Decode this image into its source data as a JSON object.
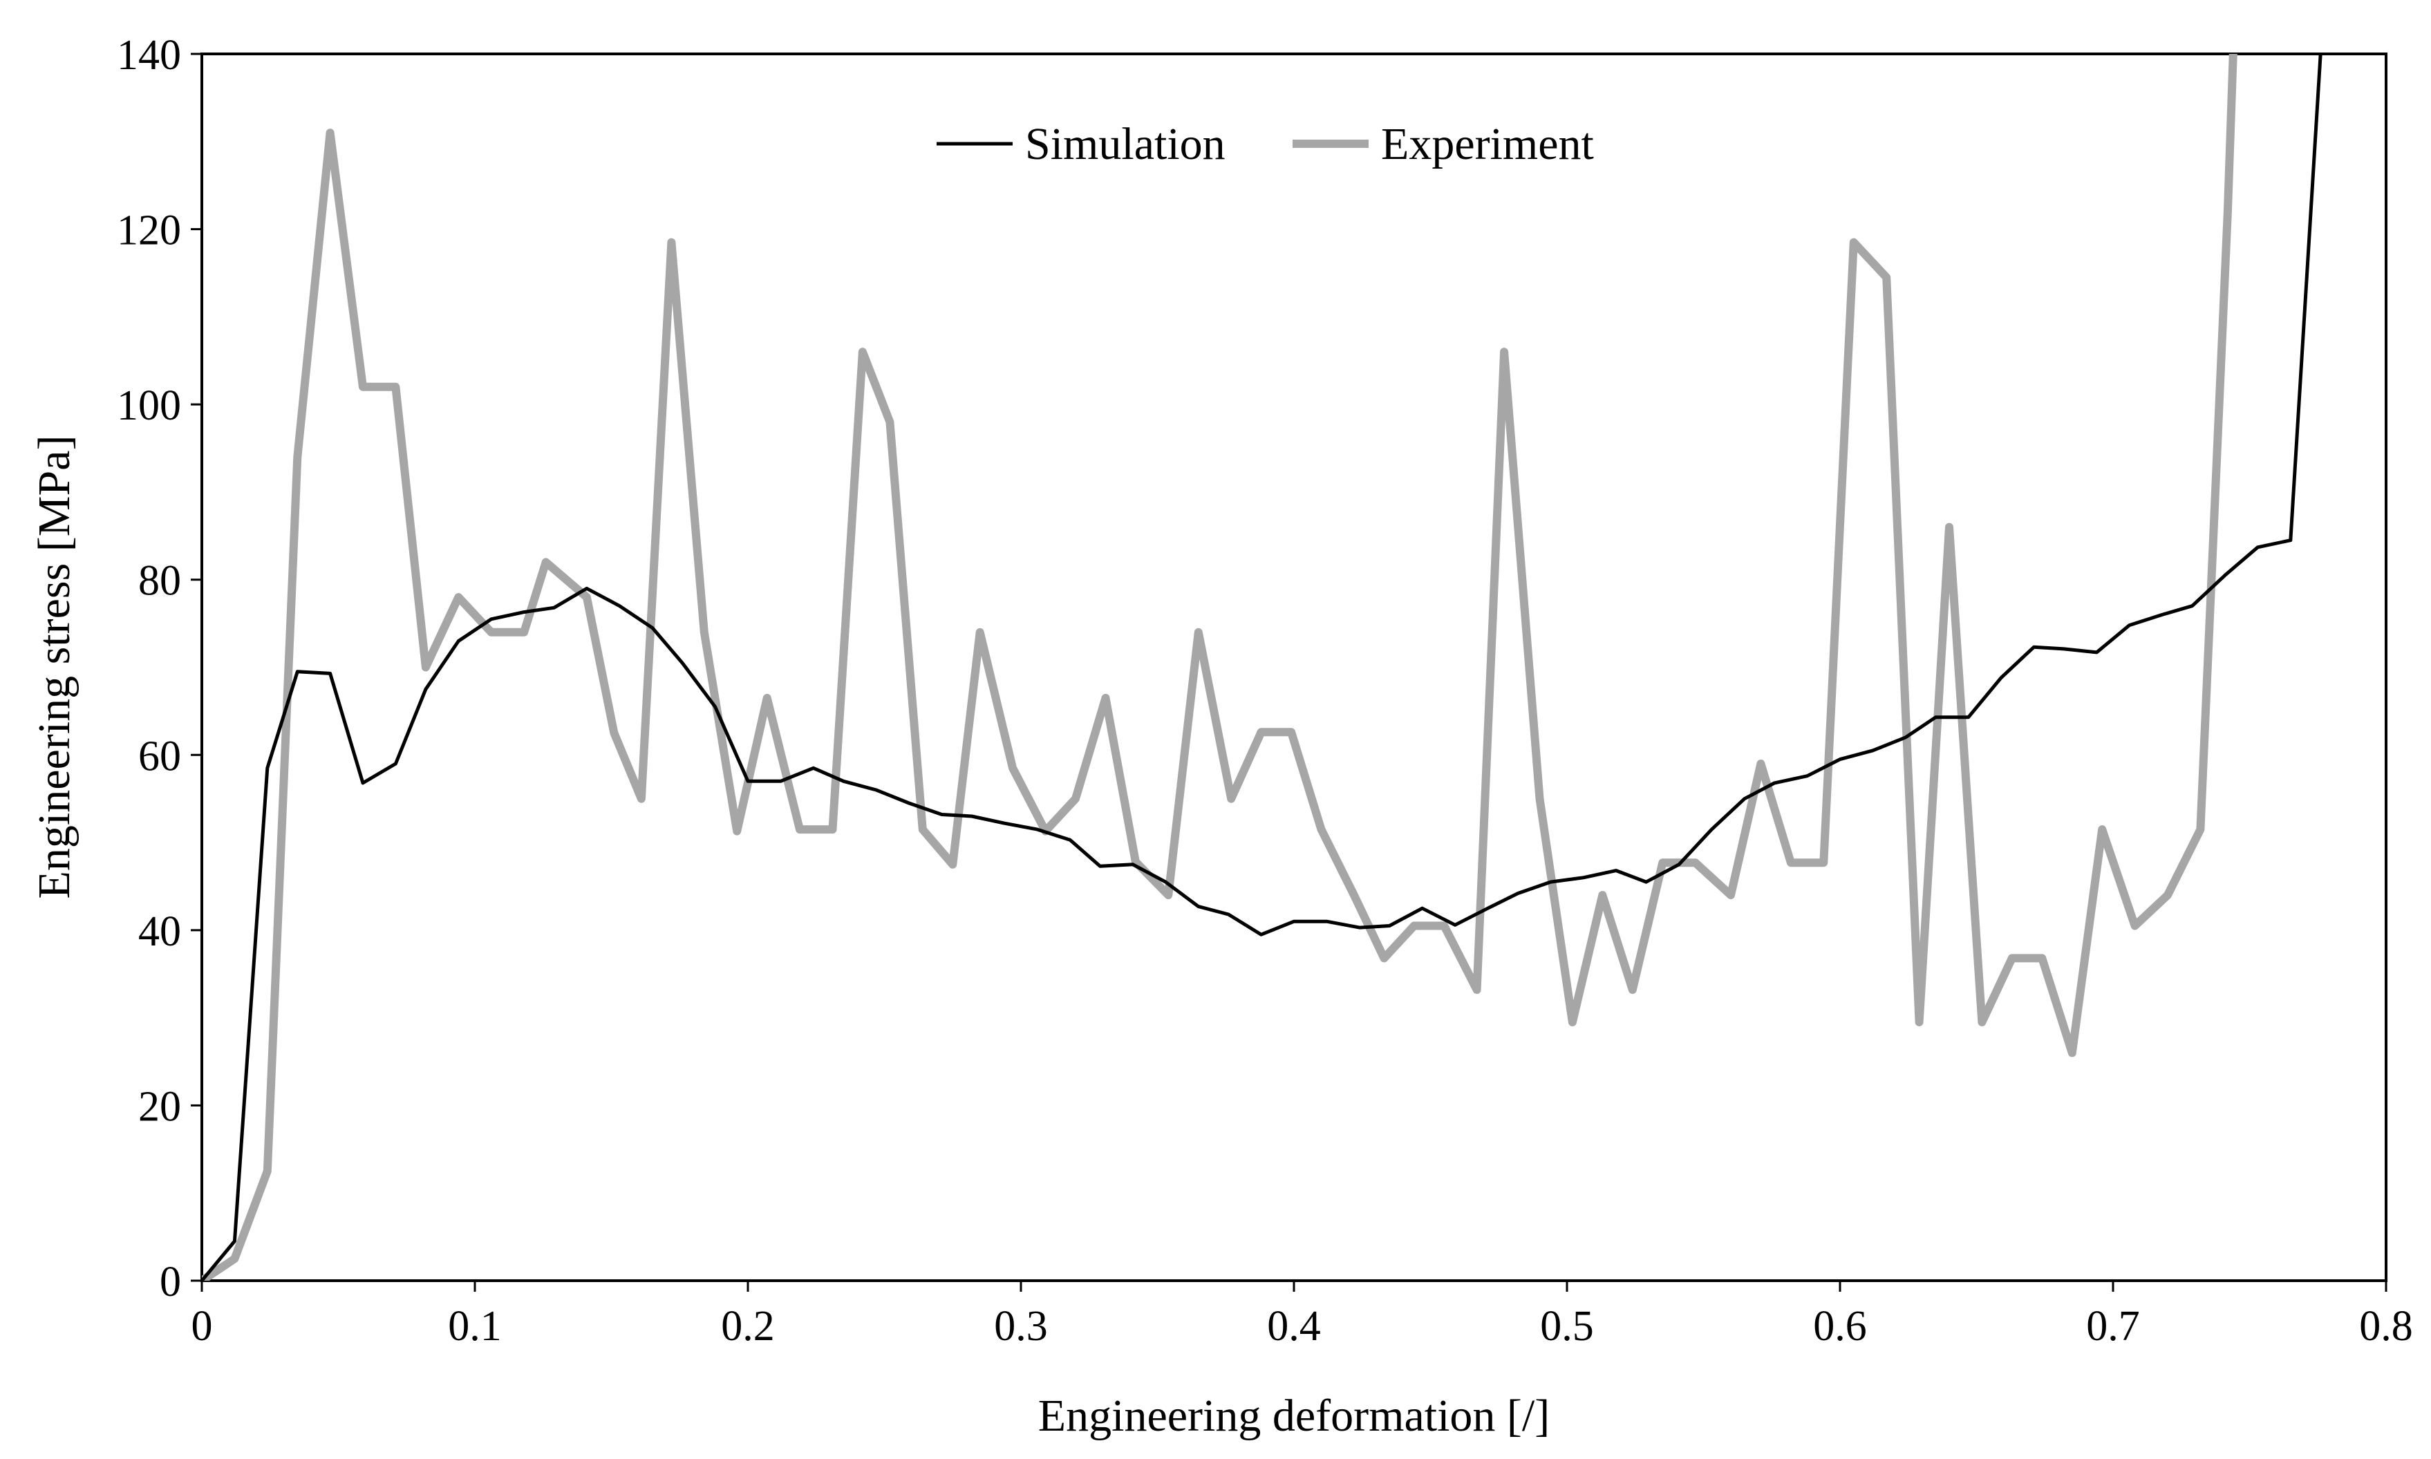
{
  "chart_data": {
    "type": "line",
    "title": "",
    "xlabel": "Engineering deformation [/]",
    "ylabel": "Engineering stress [MPa]",
    "xlim": [
      0,
      0.8
    ],
    "ylim": [
      0,
      140
    ],
    "x_ticks": [
      0,
      0.1,
      0.2,
      0.3,
      0.4,
      0.5,
      0.6,
      0.7,
      0.8
    ],
    "x_tick_labels": [
      "0",
      "0.1",
      "0.2",
      "0.3",
      "0.4",
      "0.5",
      "0.6",
      "0.7",
      "0.8"
    ],
    "y_ticks": [
      0,
      20,
      40,
      60,
      80,
      100,
      120,
      140
    ],
    "y_tick_labels": [
      "0",
      "20",
      "40",
      "60",
      "80",
      "100",
      "120",
      "140"
    ],
    "grid": false,
    "legend_position": "top-center",
    "colors": {
      "simulation": "#000000",
      "experiment": "#a6a6a6"
    },
    "series": [
      {
        "name": "Simulation",
        "color": "#000000",
        "points": [
          [
            0,
            0
          ],
          [
            0.012,
            4.5
          ],
          [
            0.024,
            58.5
          ],
          [
            0.035,
            69.5
          ],
          [
            0.047,
            69.3
          ],
          [
            0.059,
            56.8
          ],
          [
            0.071,
            59
          ],
          [
            0.082,
            67.5
          ],
          [
            0.094,
            73
          ],
          [
            0.106,
            75.5
          ],
          [
            0.118,
            76.3
          ],
          [
            0.129,
            76.8
          ],
          [
            0.141,
            79
          ],
          [
            0.153,
            77
          ],
          [
            0.165,
            74.5
          ],
          [
            0.176,
            70.5
          ],
          [
            0.188,
            65.5
          ],
          [
            0.2,
            57
          ],
          [
            0.212,
            57
          ],
          [
            0.224,
            58.5
          ],
          [
            0.235,
            57
          ],
          [
            0.247,
            56
          ],
          [
            0.259,
            54.5
          ],
          [
            0.271,
            53.2
          ],
          [
            0.282,
            53
          ],
          [
            0.294,
            52.2
          ],
          [
            0.306,
            51.5
          ],
          [
            0.318,
            50.3
          ],
          [
            0.329,
            47.3
          ],
          [
            0.341,
            47.5
          ],
          [
            0.353,
            45.5
          ],
          [
            0.365,
            42.7
          ],
          [
            0.376,
            41.8
          ],
          [
            0.388,
            39.5
          ],
          [
            0.4,
            41
          ],
          [
            0.412,
            41
          ],
          [
            0.424,
            40.3
          ],
          [
            0.435,
            40.5
          ],
          [
            0.447,
            42.5
          ],
          [
            0.459,
            40.6
          ],
          [
            0.471,
            42.5
          ],
          [
            0.482,
            44.2
          ],
          [
            0.494,
            45.5
          ],
          [
            0.506,
            46
          ],
          [
            0.518,
            46.8
          ],
          [
            0.529,
            45.5
          ],
          [
            0.541,
            47.5
          ],
          [
            0.553,
            51.5
          ],
          [
            0.565,
            55
          ],
          [
            0.576,
            56.8
          ],
          [
            0.588,
            57.6
          ],
          [
            0.6,
            59.5
          ],
          [
            0.612,
            60.5
          ],
          [
            0.624,
            62
          ],
          [
            0.635,
            64.3
          ],
          [
            0.647,
            64.3
          ],
          [
            0.659,
            68.8
          ],
          [
            0.671,
            72.3
          ],
          [
            0.682,
            72.1
          ],
          [
            0.694,
            71.7
          ],
          [
            0.706,
            74.8
          ],
          [
            0.718,
            76
          ],
          [
            0.729,
            77
          ],
          [
            0.741,
            80.5
          ],
          [
            0.753,
            83.7
          ],
          [
            0.765,
            84.5
          ],
          [
            0.776,
            140
          ]
        ]
      },
      {
        "name": "Experiment",
        "color": "#a6a6a6",
        "points": [
          [
            0,
            0
          ],
          [
            0.012,
            2.5
          ],
          [
            0.024,
            12.5
          ],
          [
            0.035,
            94
          ],
          [
            0.047,
            131
          ],
          [
            0.059,
            102
          ],
          [
            0.071,
            102
          ],
          [
            0.082,
            70
          ],
          [
            0.094,
            78
          ],
          [
            0.106,
            74
          ],
          [
            0.118,
            74
          ],
          [
            0.126,
            82
          ],
          [
            0.141,
            78
          ],
          [
            0.151,
            62.5
          ],
          [
            0.161,
            55
          ],
          [
            0.172,
            118.5
          ],
          [
            0.184,
            74
          ],
          [
            0.196,
            51.3
          ],
          [
            0.207,
            66.5
          ],
          [
            0.219,
            51.5
          ],
          [
            0.231,
            51.5
          ],
          [
            0.242,
            106
          ],
          [
            0.252,
            98
          ],
          [
            0.264,
            51.5
          ],
          [
            0.275,
            47.5
          ],
          [
            0.285,
            74
          ],
          [
            0.297,
            58.5
          ],
          [
            0.309,
            51.3
          ],
          [
            0.32,
            55
          ],
          [
            0.331,
            66.5
          ],
          [
            0.342,
            47.8
          ],
          [
            0.354,
            44
          ],
          [
            0.365,
            74
          ],
          [
            0.377,
            55
          ],
          [
            0.388,
            62.6
          ],
          [
            0.399,
            62.6
          ],
          [
            0.41,
            51.5
          ],
          [
            0.422,
            44
          ],
          [
            0.433,
            36.8
          ],
          [
            0.444,
            40.5
          ],
          [
            0.455,
            40.5
          ],
          [
            0.467,
            33.2
          ],
          [
            0.477,
            106
          ],
          [
            0.49,
            55
          ],
          [
            0.502,
            29.5
          ],
          [
            0.513,
            44
          ],
          [
            0.524,
            33.2
          ],
          [
            0.535,
            47.7
          ],
          [
            0.547,
            47.7
          ],
          [
            0.56,
            44
          ],
          [
            0.571,
            59
          ],
          [
            0.582,
            47.7
          ],
          [
            0.594,
            47.7
          ],
          [
            0.605,
            118.5
          ],
          [
            0.617,
            114.5
          ],
          [
            0.629,
            29.5
          ],
          [
            0.64,
            86
          ],
          [
            0.652,
            29.5
          ],
          [
            0.663,
            36.8
          ],
          [
            0.674,
            36.8
          ],
          [
            0.685,
            26
          ],
          [
            0.696,
            51.5
          ],
          [
            0.708,
            40.5
          ],
          [
            0.72,
            44
          ],
          [
            0.732,
            51.5
          ],
          [
            0.742,
            122
          ],
          [
            0.744,
            140
          ]
        ]
      }
    ]
  }
}
